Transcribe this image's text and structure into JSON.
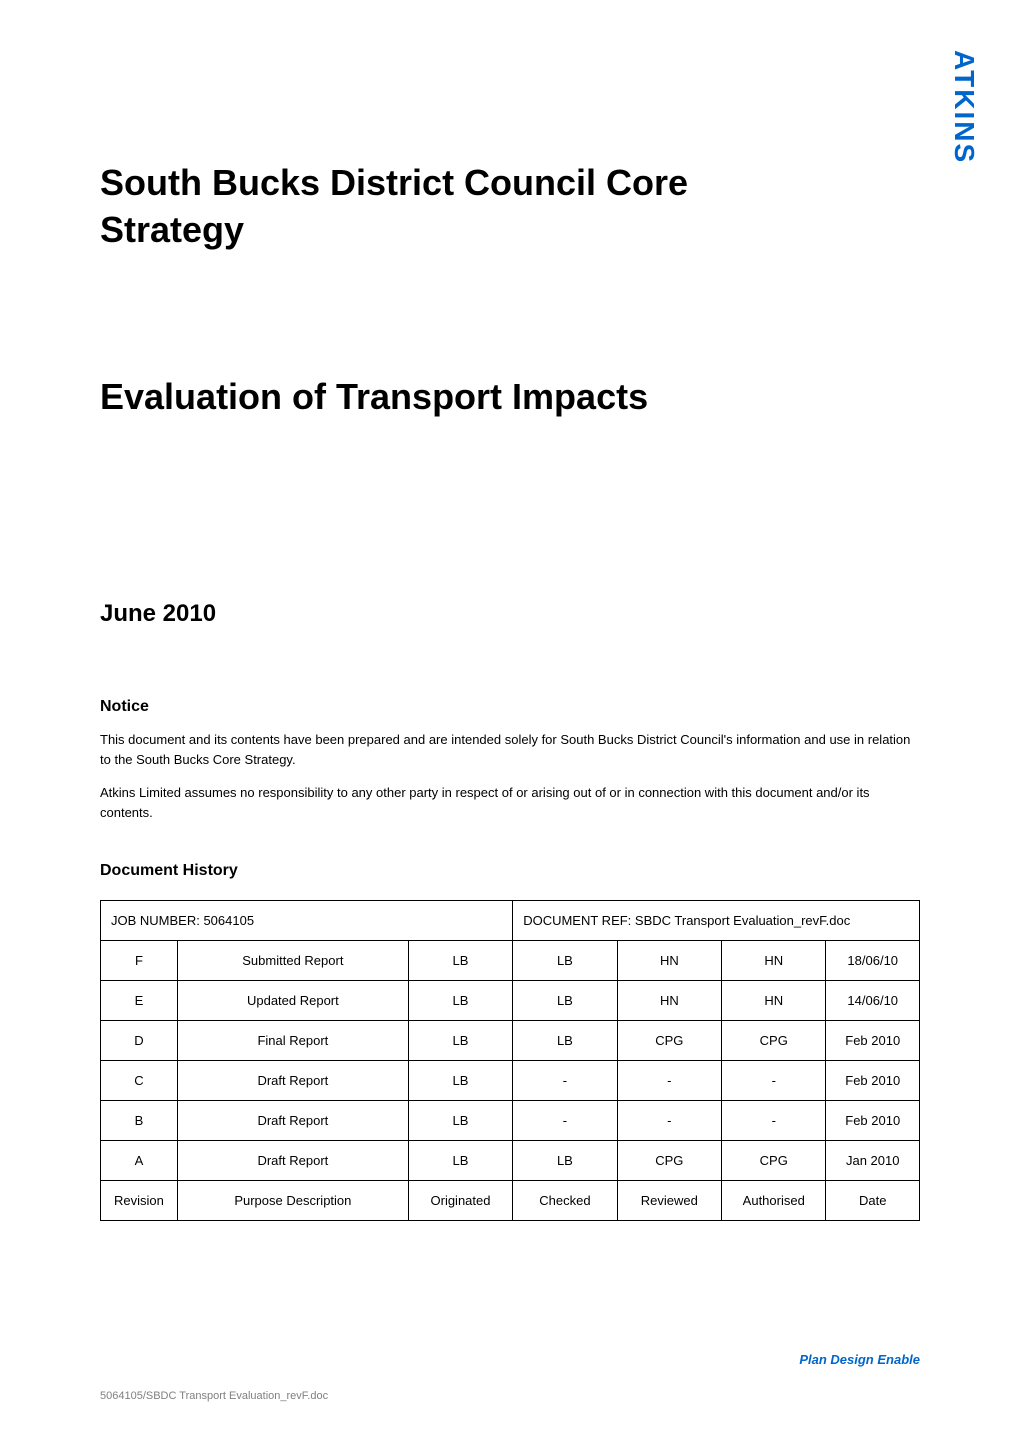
{
  "logo": {
    "text": "ATKINS",
    "color": "#0066cc"
  },
  "title": {
    "line1": "South Bucks District Council Core",
    "line2": "Strategy"
  },
  "subtitle": "Evaluation of Transport Impacts",
  "date": "June 2010",
  "notice": {
    "heading": "Notice",
    "paragraph1": "This document and its contents have been prepared and are intended solely for South Bucks District Council's information and use in relation to the South Bucks Core Strategy.",
    "paragraph2": "Atkins Limited assumes no responsibility to any other party in respect of or arising out of or in connection with this document and/or its contents."
  },
  "document_history": {
    "heading": "Document History",
    "header_row": {
      "job_number_label": "JOB NUMBER:  5064105",
      "doc_ref_label": "DOCUMENT REF:  SBDC Transport Evaluation_revF.doc"
    },
    "column_headers": {
      "revision": "Revision",
      "purpose": "Purpose Description",
      "originated": "Originated",
      "checked": "Checked",
      "reviewed": "Reviewed",
      "authorised": "Authorised",
      "date": "Date"
    },
    "rows": [
      {
        "revision": "F",
        "purpose": "Submitted Report",
        "originated": "LB",
        "checked": "LB",
        "reviewed": "HN",
        "authorised": "HN",
        "date": "18/06/10"
      },
      {
        "revision": "E",
        "purpose": "Updated Report",
        "originated": "LB",
        "checked": "LB",
        "reviewed": "HN",
        "authorised": "HN",
        "date": "14/06/10"
      },
      {
        "revision": "D",
        "purpose": "Final Report",
        "originated": "LB",
        "checked": "LB",
        "reviewed": "CPG",
        "authorised": "CPG",
        "date": "Feb 2010"
      },
      {
        "revision": "C",
        "purpose": "Draft Report",
        "originated": "LB",
        "checked": "-",
        "reviewed": "-",
        "authorised": "-",
        "date": "Feb 2010"
      },
      {
        "revision": "B",
        "purpose": "Draft Report",
        "originated": "LB",
        "checked": "-",
        "reviewed": "-",
        "authorised": "-",
        "date": "Feb 2010"
      },
      {
        "revision": "A",
        "purpose": "Draft Report",
        "originated": "LB",
        "checked": "LB",
        "reviewed": "CPG",
        "authorised": "CPG",
        "date": "Jan 2010"
      }
    ]
  },
  "footer": {
    "tagline": "Plan Design Enable",
    "filename": "5064105/SBDC Transport Evaluation_revF.doc"
  },
  "styling": {
    "background_color": "#ffffff",
    "text_color": "#000000",
    "accent_color": "#0066cc",
    "footer_text_color": "#808080",
    "border_color": "#000000",
    "title_fontsize": 36,
    "date_fontsize": 24,
    "section_heading_fontsize": 16,
    "body_fontsize": 13,
    "footer_fontsize": 11
  }
}
